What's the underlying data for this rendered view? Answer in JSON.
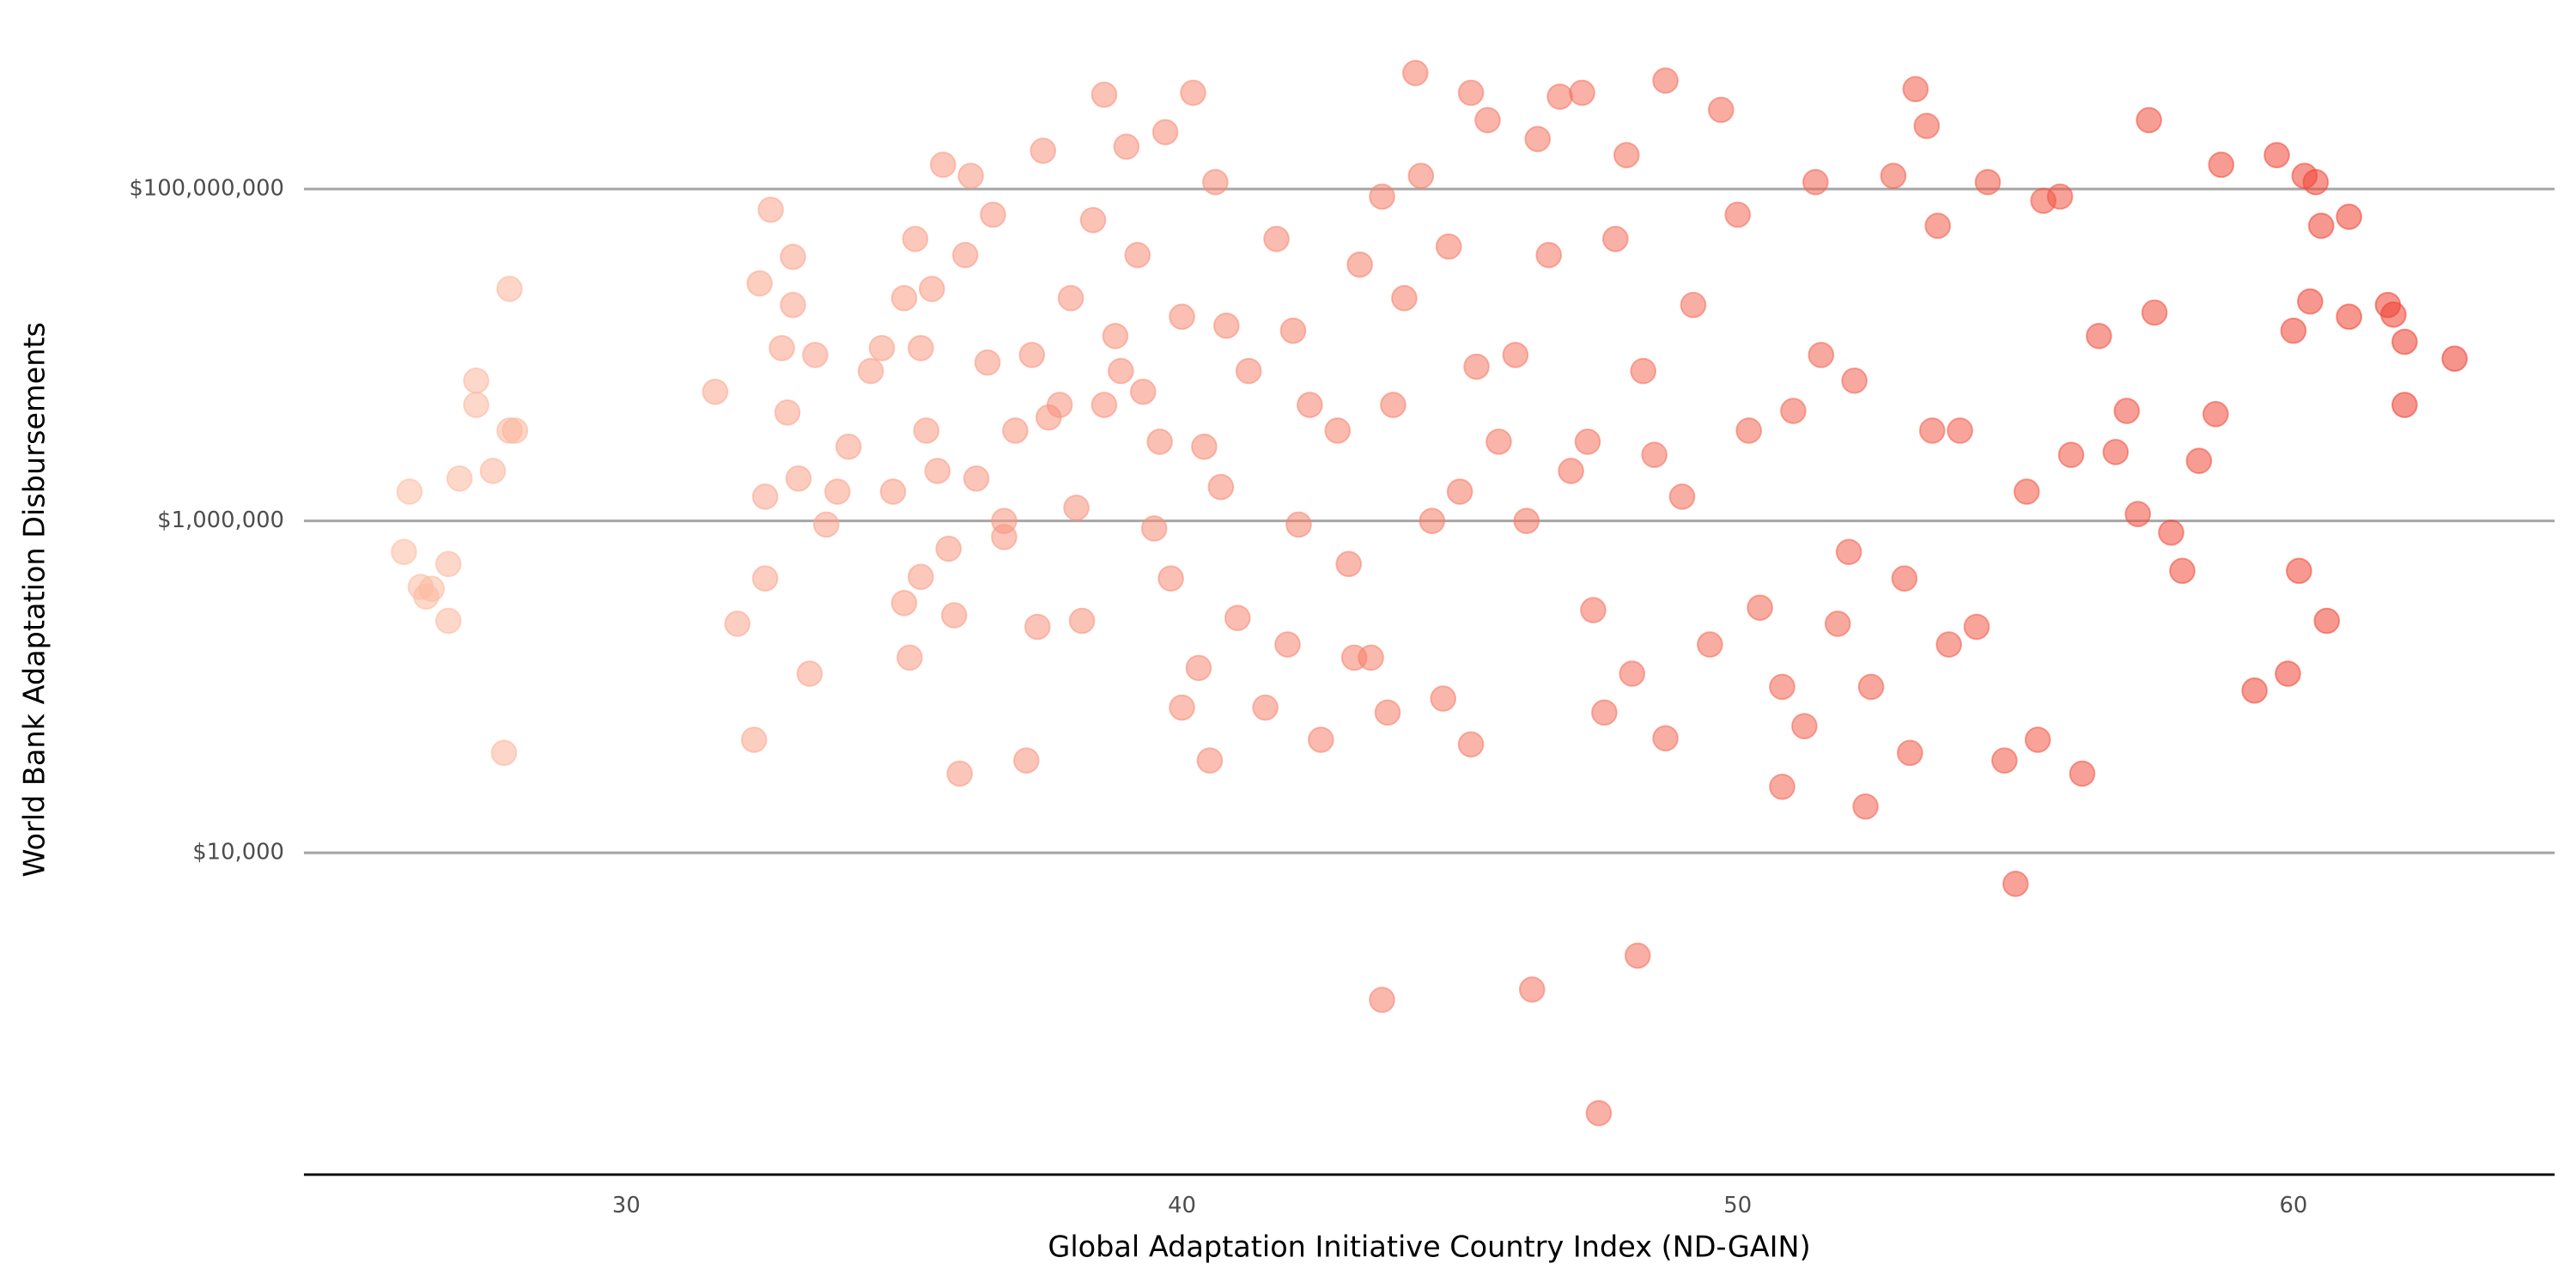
{
  "chart_data": {
    "type": "scatter",
    "x_label": "Global Adaptation Initiative Country Index (ND-GAIN)",
    "y_label": "World Bank Adaptation Disbursements",
    "y_log": true,
    "grid": true,
    "color_scale": [
      "#fcbba1",
      "#ef3b2c"
    ],
    "opacity": 0.55,
    "xlim": [
      24.2,
      64.7
    ],
    "ylim": [
      115,
      620000000
    ],
    "xticks": [
      30,
      40,
      50,
      60
    ],
    "yticks": [
      {
        "value": 10000,
        "label": "$10,000"
      },
      {
        "value": 1000000,
        "label": "$1,000,000"
      },
      {
        "value": 100000000,
        "label": "$100,000,000"
      }
    ],
    "x": [
      26.1,
      26.0,
      26.3,
      26.4,
      26.8,
      26.8,
      27.0,
      27.3,
      27.3,
      27.6,
      27.9,
      27.9,
      28.0,
      27.8,
      26.5,
      31.6,
      32.0,
      32.3,
      32.4,
      32.5,
      32.5,
      32.6,
      32.8,
      32.9,
      33.0,
      33.0,
      33.1,
      33.3,
      33.4,
      33.6,
      33.8,
      34.0,
      34.4,
      34.6,
      34.8,
      35.0,
      35.0,
      35.1,
      35.2,
      35.3,
      35.3,
      35.4,
      35.5,
      35.6,
      35.7,
      35.8,
      35.9,
      36.0,
      36.1,
      36.2,
      36.3,
      36.5,
      36.6,
      36.8,
      36.8,
      37.0,
      37.2,
      37.3,
      37.4,
      37.5,
      37.6,
      37.8,
      38.0,
      38.1,
      38.2,
      38.4,
      38.6,
      38.6,
      38.8,
      38.9,
      39.0,
      39.2,
      39.3,
      39.5,
      39.6,
      39.7,
      39.8,
      40.0,
      40.0,
      40.2,
      40.3,
      40.4,
      40.5,
      40.6,
      40.7,
      40.8,
      41.0,
      41.2,
      41.5,
      41.7,
      41.9,
      42.0,
      42.1,
      42.3,
      42.5,
      42.8,
      43.0,
      43.1,
      43.2,
      43.4,
      43.6,
      43.6,
      43.7,
      43.8,
      44.0,
      44.2,
      44.3,
      44.5,
      44.7,
      44.8,
      45.0,
      45.2,
      45.2,
      45.3,
      45.5,
      45.7,
      46.0,
      46.2,
      46.3,
      46.4,
      46.6,
      46.8,
      47.0,
      47.2,
      47.3,
      47.4,
      47.5,
      47.6,
      47.8,
      48.0,
      48.1,
      48.2,
      48.3,
      48.5,
      48.7,
      48.7,
      49.0,
      49.2,
      49.5,
      49.7,
      50.0,
      50.2,
      50.4,
      50.8,
      50.8,
      51.0,
      51.2,
      51.4,
      51.5,
      51.8,
      52.0,
      52.1,
      52.3,
      52.4,
      52.8,
      53.0,
      53.1,
      53.2,
      53.4,
      53.5,
      53.6,
      53.8,
      54.0,
      54.3,
      54.5,
      54.8,
      55.0,
      55.2,
      55.4,
      55.5,
      55.8,
      56.0,
      56.2,
      56.5,
      56.8,
      57.0,
      57.2,
      57.4,
      57.5,
      57.8,
      58.0,
      58.3,
      58.6,
      58.7,
      59.3,
      59.7,
      59.9,
      60.0,
      60.1,
      60.2,
      60.3,
      60.4,
      60.5,
      60.6,
      61.0,
      61.0,
      61.7,
      61.8,
      62.0,
      62.0,
      62.9
    ],
    "values": [
      1500000,
      650000,
      400000,
      350000,
      550000,
      250000,
      1800000,
      7000000,
      5000000,
      2000000,
      3500000,
      25000000,
      3500000,
      40000,
      390000,
      6000000,
      240000,
      48000,
      27000000,
      450000,
      1400000,
      75000000,
      11000000,
      4500000,
      39000000,
      20000000,
      1800000,
      120000,
      10000000,
      950000,
      1500000,
      2800000,
      8000000,
      11000000,
      1500000,
      22000000,
      320000,
      150000,
      50000000,
      11000000,
      460000,
      3500000,
      25000000,
      2000000,
      140000000,
      680000,
      270000,
      30000,
      40000000,
      120000000,
      1800000,
      9000000,
      70000000,
      800000,
      1000000,
      3500000,
      36000,
      10000000,
      230000,
      170000000,
      4200000,
      5000000,
      22000000,
      1200000,
      250000,
      65000000,
      370000000,
      5000000,
      13000000,
      8000000,
      180000000,
      40000000,
      6000000,
      900000,
      3000000,
      220000000,
      450000,
      17000000,
      75000,
      380000000,
      130000,
      2800000,
      36000,
      110000000,
      1600000,
      15000000,
      260000,
      8000000,
      75000,
      50000000,
      180000,
      14000000,
      950000,
      5000000,
      48000,
      3500000,
      550000,
      150000,
      35000000,
      150000,
      90000000,
      1300,
      70000,
      5000000,
      22000000,
      500000000,
      120000000,
      1000000,
      85000,
      45000000,
      1500000,
      45000,
      380000000,
      8500000,
      260000000,
      3000000,
      10000000,
      1000000,
      1500,
      200000000,
      40000000,
      360000000,
      2000000,
      380000000,
      3000000,
      290000,
      270,
      70000,
      50000000,
      160000000,
      120000,
      2400,
      8000000,
      2500000,
      49000,
      450000000,
      1400000,
      20000000,
      180000,
      300000000,
      70000000,
      3500000,
      300000,
      100000,
      25000,
      4600000,
      58000,
      110000000,
      10000000,
      240000,
      650000,
      7000000,
      19000,
      100000,
      120000000,
      450000,
      40000,
      400000000,
      240000000,
      3500000,
      60000000,
      180000,
      3500000,
      230000,
      110000000,
      36000,
      6500,
      1500000,
      48000,
      85000000,
      90000000,
      2500000,
      30000,
      13000000,
      2600000,
      4600000,
      1100000,
      260000000,
      18000000,
      850000,
      500000,
      2300000,
      4400000,
      140000000,
      95000,
      160000000,
      120000,
      14000000,
      500000,
      120000000,
      21000000,
      110000000,
      60000000,
      250000,
      68000000,
      17000000,
      20000000,
      17500000,
      5000000,
      12000000,
      9500000
    ]
  }
}
